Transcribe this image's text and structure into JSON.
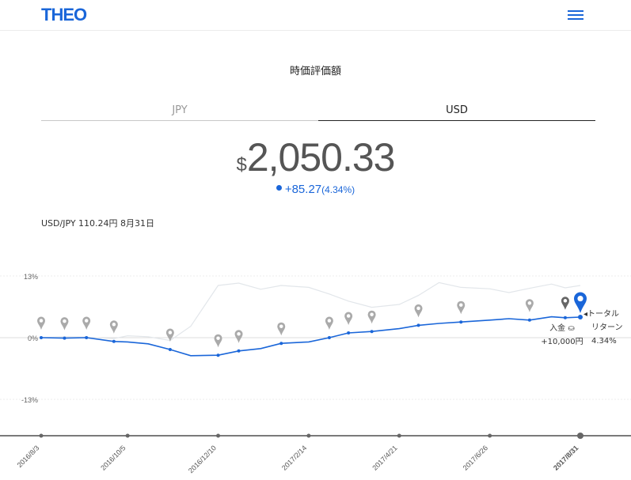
{
  "header": {
    "logo": "THEO"
  },
  "section_title": "時価評価額",
  "tabs": [
    {
      "label": "JPY",
      "active": false
    },
    {
      "label": "USD",
      "active": true
    }
  ],
  "valuation": {
    "currency_symbol": "$",
    "amount": "2,050.33",
    "change": "+85.27",
    "change_percent": "(4.34%)"
  },
  "fx_rate": "USD/JPY 110.24円 8月31日",
  "colors": {
    "brand": "#1a66d9",
    "gray_line": "#e2e6ea",
    "marker_gray": "#aaaaaa",
    "marker_dark": "#666666"
  },
  "chart_data": {
    "type": "line",
    "y_tick_labels": [
      "13%",
      "0%",
      "-13%"
    ],
    "y_ticks": [
      13,
      0,
      -13
    ],
    "ylim": [
      -13,
      13
    ],
    "x_tick_labels": [
      "2016/8/3",
      "2016/10/5",
      "2016/12/10",
      "2017/2/14",
      "2017/4/21",
      "2017/6/26",
      "2017/8/31"
    ],
    "x": [
      "2016/8/3",
      "2016/8/20",
      "2016/9/5",
      "2016/9/25",
      "2016/10/5",
      "2016/10/20",
      "2016/11/5",
      "2016/11/20",
      "2016/12/10",
      "2016/12/25",
      "2017/1/10",
      "2017/1/25",
      "2017/2/14",
      "2017/3/1",
      "2017/3/15",
      "2017/4/1",
      "2017/4/21",
      "2017/5/5",
      "2017/5/20",
      "2017/6/5",
      "2017/6/26",
      "2017/7/10",
      "2017/7/25",
      "2017/8/10",
      "2017/8/20",
      "2017/8/31"
    ],
    "series": [
      {
        "values": [
          0.0,
          -0.1,
          0.0,
          -0.8,
          -0.9,
          -1.3,
          -2.5,
          -3.8,
          -3.7,
          -2.8,
          -2.3,
          -1.2,
          -0.9,
          0.0,
          1.0,
          1.3,
          1.9,
          2.6,
          3.0,
          3.3,
          3.7,
          4.0,
          3.7,
          4.4,
          4.2,
          4.34
        ],
        "color": "#1a66d9"
      },
      {
        "values": [
          0.0,
          0.2,
          0.1,
          -0.2,
          0.4,
          0.2,
          -0.6,
          2.4,
          11.0,
          11.5,
          10.2,
          11.0,
          10.6,
          9.2,
          7.7,
          6.4,
          7.0,
          8.9,
          11.6,
          10.6,
          10.3,
          9.5,
          10.4,
          11.3,
          10.5,
          11.0
        ],
        "color": "#e2e6ea"
      }
    ],
    "deposits": [
      "2016/8/3",
      "2016/8/20",
      "2016/9/5",
      "2016/9/25",
      "2016/11/5",
      "2016/12/10",
      "2016/12/25",
      "2017/1/25",
      "2017/3/1",
      "2017/3/15",
      "2017/4/1",
      "2017/5/5",
      "2017/6/5",
      "2017/7/25",
      "2017/8/20"
    ],
    "annotations": [
      {
        "date": "2017/8/20",
        "lines": [
          "入金 ⛀",
          "+10,000円"
        ]
      },
      {
        "date": "2017/8/31",
        "lines": [
          "◂トータル",
          "リターン",
          "4.34%"
        ]
      }
    ]
  }
}
